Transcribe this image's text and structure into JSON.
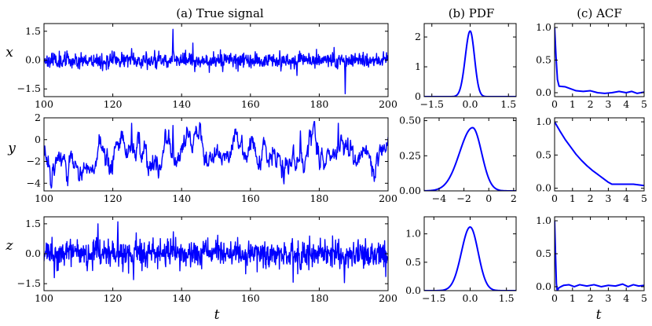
{
  "figure": {
    "panel_titles": [
      "(a) True signal",
      "(b) PDF",
      "(c) ACF"
    ],
    "row_labels": [
      "x",
      "y",
      "z"
    ],
    "x_axis_label": "t",
    "line_color": "#0000ff"
  },
  "chart_data": [
    {
      "id": "ts-x",
      "type": "line",
      "title": "(a) True signal",
      "ylabel": "x",
      "xlim": [
        100,
        200
      ],
      "ylim": [
        -1.9,
        1.9
      ],
      "xticks": [
        100,
        120,
        140,
        160,
        180,
        200
      ],
      "yticks": [
        -1.5,
        0.0,
        1.5
      ],
      "ytick_labels": [
        "−1.5",
        "0.0",
        "1.5"
      ],
      "series": [
        {
          "seed": 11,
          "kind": "noise",
          "mean": 0.0,
          "std": 0.25,
          "spikes": [
            [
              137.5,
              1.6
            ],
            [
              187.5,
              -1.75
            ],
            [
              125.5,
              0.6
            ],
            [
              117.0,
              -0.55
            ],
            [
              173.5,
              -0.8
            ]
          ]
        }
      ]
    },
    {
      "id": "ts-y",
      "type": "line",
      "xlabel": "",
      "ylabel": "y",
      "xlim": [
        100,
        200
      ],
      "ylim": [
        -4.7,
        2.0
      ],
      "xticks": [
        100,
        120,
        140,
        160,
        180,
        200
      ],
      "yticks": [
        -4,
        -2,
        0,
        2
      ],
      "ytick_labels": [
        "−4",
        "−2",
        "0",
        "2"
      ],
      "series": [
        {
          "seed": 5,
          "kind": "ou",
          "mean": -1.2,
          "std": 0.9,
          "tau": 1.2,
          "spikes": [
            [
              125.5,
              1.5
            ],
            [
              137.5,
              1.3
            ],
            [
              185.5,
              1.5
            ],
            [
              174.5,
              0.8
            ],
            [
              157.5,
              0.4
            ]
          ]
        }
      ]
    },
    {
      "id": "ts-z",
      "type": "line",
      "xlabel": "t",
      "ylabel": "z",
      "xlim": [
        100,
        200
      ],
      "ylim": [
        -1.85,
        1.85
      ],
      "xticks": [
        100,
        120,
        140,
        160,
        180,
        200
      ],
      "yticks": [
        -1.5,
        0.0,
        1.5
      ],
      "ytick_labels": [
        "−1.5",
        "0.0",
        "1.5"
      ],
      "series": [
        {
          "seed": 23,
          "kind": "noise",
          "mean": 0.0,
          "std": 0.42,
          "spikes": [
            [
              121.5,
              1.6
            ],
            [
              115.7,
              1.5
            ],
            [
              137.6,
              1.1
            ],
            [
              187.3,
              -1.45
            ],
            [
              126.0,
              -1.3
            ],
            [
              103.0,
              -1.2
            ]
          ]
        }
      ]
    },
    {
      "id": "pdf-x",
      "type": "line",
      "title": "(b) PDF",
      "xlim": [
        -1.8,
        1.8
      ],
      "ylim": [
        0,
        2.45
      ],
      "xticks": [
        -1.5,
        0.0,
        1.5
      ],
      "xtick_labels": [
        "−1.5",
        "0.0",
        "1.5"
      ],
      "yticks": [
        0,
        1,
        2
      ],
      "ytick_labels": [
        "0",
        "1",
        "2"
      ],
      "series": [
        {
          "kind": "gauss",
          "mu": 0.0,
          "sigma_l": 0.19,
          "sigma_r": 0.17,
          "peak": 2.2
        }
      ]
    },
    {
      "id": "pdf-y",
      "type": "line",
      "xlim": [
        -5.2,
        2.2
      ],
      "ylim": [
        0,
        0.52
      ],
      "xticks": [
        -4,
        -2,
        0,
        2
      ],
      "xtick_labels": [
        "−4",
        "−2",
        "0",
        "2"
      ],
      "yticks": [
        0.0,
        0.25,
        0.5
      ],
      "ytick_labels": [
        "0.00",
        "0.25",
        "0.50"
      ],
      "series": [
        {
          "kind": "gauss",
          "mu": -1.3,
          "sigma_l": 1.05,
          "sigma_r": 0.72,
          "peak": 0.45
        }
      ]
    },
    {
      "id": "pdf-z",
      "type": "line",
      "xlim": [
        -1.9,
        1.9
      ],
      "ylim": [
        0,
        1.3
      ],
      "xticks": [
        -1.5,
        0.0,
        1.5
      ],
      "xtick_labels": [
        "−1.5",
        "0.0",
        "1.5"
      ],
      "yticks": [
        0.0,
        0.5,
        1.0
      ],
      "ytick_labels": [
        "0.0",
        "0.5",
        "1.0"
      ],
      "series": [
        {
          "kind": "gauss",
          "mu": 0.0,
          "sigma_l": 0.36,
          "sigma_r": 0.33,
          "peak": 1.12
        }
      ]
    },
    {
      "id": "acf-x",
      "type": "line",
      "title": "(c) ACF",
      "xlim": [
        0,
        5
      ],
      "ylim": [
        -0.06,
        1.06
      ],
      "xticks": [
        0,
        1,
        2,
        3,
        4,
        5
      ],
      "yticks": [
        0.0,
        0.5,
        1.0
      ],
      "ytick_labels": [
        "0.0",
        "0.5",
        "1.0"
      ],
      "series": [
        {
          "points": [
            [
              0,
              1.0
            ],
            [
              0.08,
              0.55
            ],
            [
              0.16,
              0.2
            ],
            [
              0.25,
              0.1
            ],
            [
              0.6,
              0.09
            ],
            [
              0.9,
              0.06
            ],
            [
              1.2,
              0.03
            ],
            [
              1.6,
              0.02
            ],
            [
              2.0,
              0.03
            ],
            [
              2.4,
              0.0
            ],
            [
              2.8,
              -0.01
            ],
            [
              3.2,
              0.0
            ],
            [
              3.6,
              0.02
            ],
            [
              4.0,
              0.0
            ],
            [
              4.3,
              0.02
            ],
            [
              4.6,
              -0.01
            ],
            [
              5.0,
              0.01
            ]
          ]
        }
      ]
    },
    {
      "id": "acf-y",
      "type": "line",
      "xlim": [
        0,
        5
      ],
      "ylim": [
        -0.04,
        1.06
      ],
      "xticks": [
        0,
        1,
        2,
        3,
        4,
        5
      ],
      "yticks": [
        0.0,
        0.5,
        1.0
      ],
      "ytick_labels": [
        "0.0",
        "0.5",
        "1.0"
      ],
      "series": [
        {
          "points": [
            [
              0,
              1.0
            ],
            [
              0.3,
              0.86
            ],
            [
              0.6,
              0.73
            ],
            [
              0.9,
              0.62
            ],
            [
              1.2,
              0.51
            ],
            [
              1.5,
              0.42
            ],
            [
              1.8,
              0.34
            ],
            [
              2.1,
              0.27
            ],
            [
              2.4,
              0.21
            ],
            [
              2.7,
              0.15
            ],
            [
              3.0,
              0.09
            ],
            [
              3.2,
              0.06
            ],
            [
              3.6,
              0.06
            ],
            [
              4.0,
              0.06
            ],
            [
              4.4,
              0.06
            ],
            [
              4.7,
              0.05
            ],
            [
              5.0,
              0.04
            ]
          ]
        }
      ]
    },
    {
      "id": "acf-z",
      "type": "line",
      "xlabel": "t",
      "xlim": [
        0,
        5
      ],
      "ylim": [
        -0.06,
        1.06
      ],
      "xticks": [
        0,
        1,
        2,
        3,
        4,
        5
      ],
      "yticks": [
        0.0,
        0.5,
        1.0
      ],
      "ytick_labels": [
        "0.0",
        "0.5",
        "1.0"
      ],
      "series": [
        {
          "points": [
            [
              0,
              1.0
            ],
            [
              0.05,
              0.5
            ],
            [
              0.1,
              0.05
            ],
            [
              0.15,
              -0.08
            ],
            [
              0.22,
              -0.02
            ],
            [
              0.35,
              0.0
            ],
            [
              0.5,
              0.02
            ],
            [
              0.8,
              0.03
            ],
            [
              1.1,
              0.0
            ],
            [
              1.4,
              0.03
            ],
            [
              1.8,
              0.01
            ],
            [
              2.2,
              0.03
            ],
            [
              2.6,
              0.0
            ],
            [
              3.0,
              0.02
            ],
            [
              3.4,
              0.01
            ],
            [
              3.8,
              0.04
            ],
            [
              4.1,
              0.0
            ],
            [
              4.4,
              0.03
            ],
            [
              4.7,
              0.01
            ],
            [
              5.0,
              0.02
            ]
          ]
        }
      ]
    }
  ]
}
